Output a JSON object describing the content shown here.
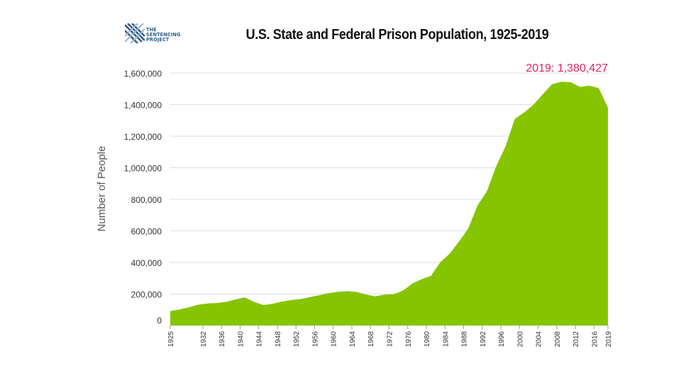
{
  "logo": {
    "line1": "THE",
    "line2": "SENTENCING",
    "line3": "PROJECT"
  },
  "colors": {
    "area": "#86c400",
    "annotation": "#e0245e",
    "grid": "#dddddd",
    "text": "#333333"
  },
  "chart_data": {
    "type": "area",
    "title": "U.S. State and Federal Prison Population, 1925-2019",
    "xlabel": "",
    "ylabel": "Number of People",
    "ylim": [
      0,
      1600000
    ],
    "xlim": [
      1925,
      2019
    ],
    "grid": true,
    "yticks": [
      0,
      200000,
      400000,
      600000,
      800000,
      1000000,
      1200000,
      1400000,
      1600000
    ],
    "ytick_labels": [
      "0",
      "200,000",
      "400,000",
      "600,000",
      "800,000",
      "1,000,000",
      "1,200,000",
      "1,400,000",
      "1,600,000"
    ],
    "xticks": [
      1925,
      1932,
      1936,
      1940,
      1944,
      1948,
      1952,
      1956,
      1960,
      1964,
      1968,
      1972,
      1976,
      1980,
      1984,
      1988,
      1992,
      1996,
      2000,
      2004,
      2008,
      2012,
      2016,
      2019
    ],
    "annotation": {
      "text": "2019: 1,380,427",
      "x": 2019,
      "y": 1380427
    },
    "series": [
      {
        "x": [
          1925,
          1927,
          1929,
          1931,
          1933,
          1935,
          1937,
          1939,
          1941,
          1943,
          1945,
          1947,
          1949,
          1951,
          1953,
          1955,
          1957,
          1959,
          1961,
          1963,
          1965,
          1967,
          1969,
          1971,
          1973,
          1975,
          1977,
          1979,
          1981,
          1983,
          1985,
          1987,
          1989,
          1991,
          1993,
          1995,
          1997,
          1999,
          2001,
          2003,
          2005,
          2007,
          2009,
          2011,
          2013,
          2015,
          2017,
          2019
        ],
        "values": [
          91669,
          102000,
          116000,
          132000,
          140000,
          143000,
          150000,
          165000,
          178000,
          150000,
          130000,
          138000,
          152000,
          162000,
          168000,
          180000,
          192000,
          205000,
          214000,
          218000,
          213000,
          197000,
          185000,
          196000,
          198000,
          222000,
          266000,
          294000,
          315000,
          402000,
          455000,
          532000,
          615000,
          762000,
          850000,
          1010000,
          1135000,
          1310000,
          1350000,
          1400000,
          1465000,
          1530000,
          1545000,
          1542000,
          1512000,
          1520000,
          1505000,
          1380427
        ]
      }
    ]
  }
}
